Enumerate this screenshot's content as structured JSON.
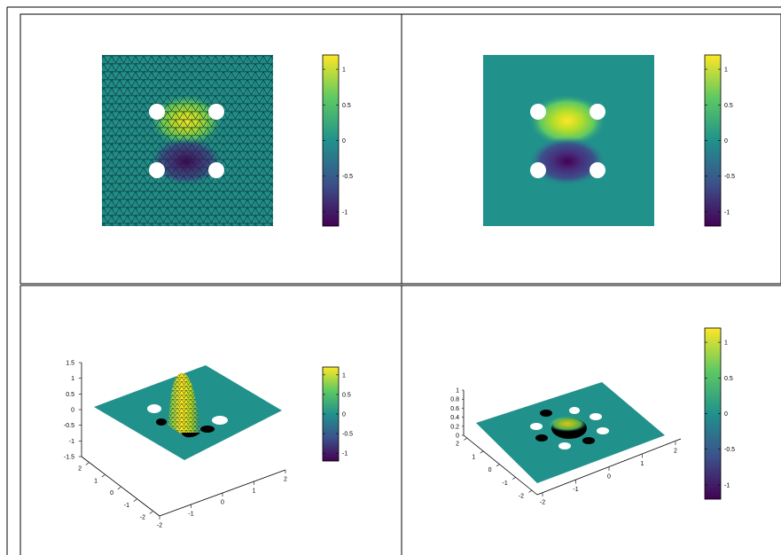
{
  "colormap": [
    "#440154",
    "#3b528b",
    "#21918c",
    "#5ec962",
    "#fde725"
  ],
  "colorbar_ticks": [
    "1",
    "0.5",
    "0",
    "-0.5",
    "-1"
  ],
  "colors": {
    "background": "#21918c",
    "mesh": "#0b2c2a",
    "hole": "#ffffff"
  },
  "chart_data": [
    {
      "panel": "top-left",
      "type": "heatmap",
      "description_type": "triangulated mesh field",
      "field": {
        "hump_value": 1.2,
        "dip_value": -1.2
      },
      "colorbar": {
        "ticks": [
          1,
          0.5,
          0,
          -0.5,
          -1
        ],
        "range": [
          -1.2,
          1.2
        ]
      },
      "mesh_visible": true
    },
    {
      "panel": "top-right",
      "type": "heatmap",
      "field": {
        "hump_value": 1.2,
        "dip_value": -1.2
      },
      "colorbar": {
        "ticks": [
          1,
          0.5,
          0,
          -0.5,
          -1
        ],
        "range": [
          -1.2,
          1.2
        ]
      },
      "mesh_visible": false
    },
    {
      "panel": "bottom-left",
      "type": "area",
      "projection": "3d surface",
      "zlim": [
        -1.5,
        1.5
      ],
      "z_ticks": [
        "1.5",
        "1",
        "0.5",
        "0",
        "-0.5",
        "-1",
        "-1.5"
      ],
      "x_ticks": [
        "-2",
        "-1",
        "0",
        "1",
        "2"
      ],
      "y_ticks": [
        "2",
        "1",
        "0",
        "-1",
        "-2"
      ],
      "colorbar": {
        "ticks": [
          1,
          0.5,
          0,
          -0.5,
          -1
        ],
        "range": [
          -1.2,
          1.2
        ]
      }
    },
    {
      "panel": "bottom-right",
      "type": "area",
      "projection": "3d surface",
      "zlim": [
        0,
        1
      ],
      "z_ticks": [
        "1",
        "0.8",
        "0.6",
        "0.4",
        "0.2",
        "0"
      ],
      "x_ticks": [
        "-2",
        "-1",
        "0",
        "1",
        "2"
      ],
      "y_ticks": [
        "2",
        "1",
        "0",
        "-1",
        "-2"
      ],
      "colorbar": {
        "ticks": [
          1,
          0.5,
          0,
          -0.5,
          -1
        ],
        "range": [
          -1.2,
          1.2
        ]
      }
    }
  ],
  "panels": {
    "bl": {
      "z_ticks": [
        "1.5",
        "1",
        "0.5",
        "0",
        "-0.5",
        "-1",
        "-1.5"
      ],
      "x_ticks": [
        "-2",
        "-1",
        "0",
        "1",
        "2"
      ],
      "y_ticks": [
        "2",
        "1",
        "0",
        "-1",
        "-2"
      ]
    },
    "br": {
      "z_ticks": [
        "1",
        "0.8",
        "0.6",
        "0.4",
        "0.2",
        "0"
      ],
      "x_ticks": [
        "-2",
        "-1",
        "0",
        "1",
        "2"
      ],
      "y_ticks": [
        "2",
        "1",
        "0",
        "-1",
        "-2"
      ]
    }
  }
}
